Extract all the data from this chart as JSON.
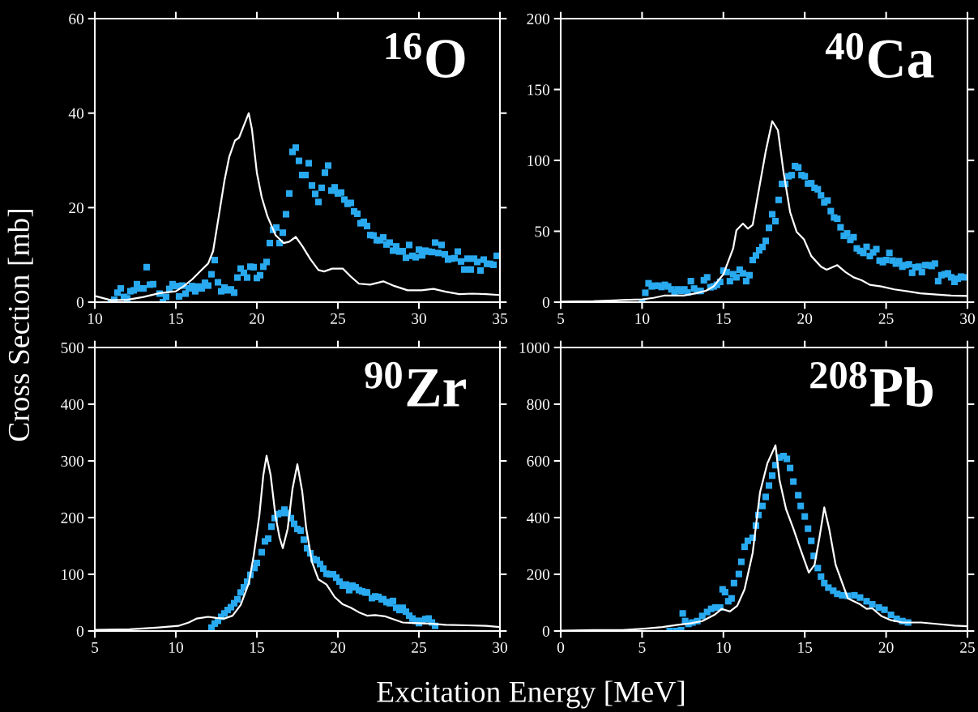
{
  "chart_data": [
    {
      "type": "scatter",
      "annotations": [
        "$^{16}$O"
      ],
      "ylabel": "Cross Section [mb]",
      "xlim": [
        10,
        35
      ],
      "xticks": [
        10,
        15,
        20,
        25,
        30,
        35
      ],
      "ylim": [
        0,
        60
      ],
      "yticks": [
        0,
        20,
        40,
        60
      ],
      "grid": false,
      "series": [
        {
          "type": "scatter",
          "marker": "square",
          "color": "#29aaf0",
          "x": [
            11.0,
            11.2,
            11.4,
            11.6,
            11.8,
            12.0,
            12.2,
            12.4,
            12.6,
            12.8,
            13.0,
            13.2,
            13.4,
            13.6,
            14.0,
            14.2,
            14.4,
            14.6,
            14.8,
            15.0,
            15.2,
            15.4,
            15.6,
            15.8,
            16.0,
            16.2,
            16.4,
            16.6,
            16.8,
            17.0,
            17.2,
            17.4,
            17.6,
            17.8,
            18.0,
            18.2,
            18.4,
            18.6,
            18.8,
            19.0,
            19.2,
            19.4,
            19.6,
            19.8,
            20.0,
            20.2,
            20.4,
            20.6,
            20.8,
            21.0,
            21.2,
            21.4,
            21.6,
            21.8,
            22.0,
            22.2,
            22.4,
            22.6,
            22.8,
            23.0,
            23.2,
            23.4,
            23.6,
            23.8,
            24.0,
            24.2,
            24.4,
            24.6,
            24.8,
            25.0,
            25.2,
            25.4,
            25.6,
            25.8,
            26.0,
            26.2,
            26.4,
            26.6,
            26.8,
            27.0,
            27.2,
            27.4,
            27.6,
            27.8,
            28.0,
            28.2,
            28.4,
            28.6,
            28.8,
            29.0,
            29.2,
            29.4,
            29.6,
            29.8,
            30.0,
            30.2,
            30.4,
            30.6,
            30.8,
            31.0,
            31.2,
            31.4,
            31.6,
            31.8,
            32.0,
            32.2,
            32.4,
            32.6,
            32.8,
            33.0,
            33.2,
            33.4,
            33.6,
            33.8,
            34.0,
            34.2,
            34.4,
            34.6,
            34.8
          ],
          "values": [
            0,
            0.5,
            2,
            2.9,
            1.1,
            0.8,
            2.3,
            2.5,
            3.8,
            2.9,
            2.9,
            7.4,
            3.7,
            3.8,
            1.8,
            0,
            1.1,
            2.8,
            3.8,
            3.4,
            1.2,
            3.5,
            1.8,
            2.9,
            3.4,
            2.3,
            3.3,
            2.9,
            4.1,
            3.5,
            5.9,
            8.9,
            4.2,
            2.3,
            3.1,
            2.5,
            2.7,
            2.0,
            5.2,
            7.1,
            6.2,
            5.2,
            7.5,
            7.4,
            5.1,
            5.7,
            7.5,
            8.5,
            12.5,
            15.3,
            15.8,
            12.5,
            14.7,
            18.6,
            23.0,
            31.8,
            32.7,
            29.9,
            26.9,
            26.9,
            29.4,
            24.7,
            22.9,
            21.2,
            24.2,
            27.4,
            28.9,
            23.6,
            24.3,
            23.0,
            23.2,
            21.7,
            20.8,
            21.0,
            19.2,
            18.7,
            16.7,
            17.0,
            16.1,
            14.2,
            14.1,
            13.1,
            13.1,
            13.7,
            12.2,
            12.6,
            10.9,
            11.8,
            10.7,
            10.8,
            9.4,
            12.1,
            9.8,
            9.5,
            11.1,
            9.9,
            10.9,
            10.7,
            10.6,
            12.6,
            10.4,
            12.1,
            10.1,
            9.0,
            9.2,
            9.3,
            10.7,
            8.6,
            6.9,
            9.2,
            6.9,
            9.2,
            8.5,
            6.7,
            9.0,
            8.1,
            8.1,
            7.9,
            9.8
          ]
        },
        {
          "type": "line",
          "color": "#ffffff",
          "x": [
            10,
            11,
            12,
            13,
            14,
            15,
            15.5,
            16,
            16.5,
            17,
            17.3,
            17.65,
            18,
            18.3,
            18.65,
            18.9,
            19.2,
            19.5,
            19.7,
            20,
            20.3,
            20.65,
            21.15,
            21.65,
            22,
            22.4,
            22.8,
            23.3,
            23.8,
            24.15,
            24.65,
            25.3,
            25.8,
            26.3,
            27,
            27.8,
            28.5,
            29.3,
            30.15,
            30.9,
            31.65,
            32.5,
            33.3,
            34.15,
            35
          ],
          "values": [
            1.3,
            0.4,
            0.5,
            1.1,
            1.9,
            2.3,
            3.4,
            4.8,
            6.5,
            8.2,
            10.8,
            18.2,
            25.7,
            30.8,
            34.2,
            34.8,
            37.4,
            40,
            36.5,
            27.4,
            22.2,
            18.2,
            14.2,
            12.5,
            12.8,
            13.8,
            11.9,
            9.1,
            6.8,
            6.5,
            7.1,
            7.1,
            5.4,
            3.9,
            3.7,
            4.4,
            3.4,
            2.5,
            2.5,
            2.8,
            2.2,
            1.7,
            1.8,
            1.7,
            1.5
          ]
        }
      ]
    },
    {
      "type": "scatter",
      "annotations": [
        "$^{40}$Ca"
      ],
      "xlim": [
        5,
        30
      ],
      "xticks": [
        5,
        10,
        15,
        20,
        25,
        30
      ],
      "ylim": [
        0,
        200
      ],
      "yticks": [
        0,
        50,
        100,
        150,
        200
      ],
      "grid": false,
      "series": [
        {
          "type": "scatter",
          "marker": "square",
          "color": "#29aaf0",
          "x": [
            10.0,
            10.2,
            10.4,
            10.6,
            10.8,
            11.0,
            11.2,
            11.4,
            11.6,
            11.8,
            12.0,
            12.2,
            12.4,
            12.6,
            12.8,
            13.0,
            13.2,
            13.4,
            13.6,
            13.8,
            14.0,
            14.2,
            14.4,
            14.6,
            14.8,
            15.0,
            15.2,
            15.4,
            15.6,
            15.8,
            16.0,
            16.2,
            16.4,
            16.6,
            16.8,
            17.0,
            17.2,
            17.4,
            17.6,
            17.8,
            18.0,
            18.2,
            18.4,
            18.6,
            18.8,
            19.0,
            19.2,
            19.4,
            19.6,
            19.8,
            20.0,
            20.2,
            20.4,
            20.6,
            20.8,
            21.0,
            21.2,
            21.4,
            21.6,
            21.8,
            22.0,
            22.2,
            22.4,
            22.6,
            22.8,
            23.0,
            23.2,
            23.4,
            23.6,
            23.8,
            24.0,
            24.2,
            24.4,
            24.6,
            24.8,
            25.0,
            25.2,
            25.4,
            25.6,
            25.8,
            26.0,
            26.2,
            26.4,
            26.6,
            26.8,
            27.0,
            27.2,
            27.4,
            27.6,
            27.8,
            28.0,
            28.2,
            28.4,
            28.6,
            28.8,
            29.0,
            29.2,
            29.4,
            29.6,
            29.8
          ],
          "values": [
            0,
            6.6,
            13.3,
            11.1,
            11.6,
            11.6,
            10.7,
            12.2,
            11.1,
            9.0,
            6.8,
            9.0,
            7.9,
            9.0,
            6.8,
            14.8,
            9.6,
            7.9,
            7.9,
            15.4,
            17.5,
            10.5,
            11.1,
            12.2,
            14.3,
            22.2,
            21.2,
            14.8,
            19.7,
            17.5,
            22.9,
            20.3,
            14.8,
            19.0,
            29.7,
            32.9,
            36.6,
            38.9,
            43.2,
            52.4,
            62.0,
            57.1,
            72.1,
            83.4,
            83.4,
            88.8,
            89.6,
            96.0,
            95.0,
            89.6,
            88.8,
            83.6,
            83.9,
            80.6,
            79.6,
            75.3,
            70.4,
            71.7,
            64.2,
            59.7,
            58.8,
            52.8,
            46.8,
            48.5,
            43.9,
            45.8,
            37.9,
            36.1,
            34.7,
            39.0,
            32.5,
            35.1,
            37.4,
            29.3,
            28.2,
            29.7,
            34.7,
            29.3,
            27.2,
            28.9,
            25.0,
            26.1,
            26.7,
            20.7,
            24.6,
            25.0,
            21.2,
            26.1,
            26.1,
            25.5,
            27.2,
            14.8,
            19.0,
            19.7,
            20.3,
            17.5,
            14.3,
            16.5,
            18.0,
            17.5
          ]
        },
        {
          "type": "line",
          "color": "#ffffff",
          "x": [
            5,
            7,
            8.8,
            10,
            10.7,
            11.4,
            12.6,
            13.3,
            13.9,
            14.4,
            15.0,
            15.6,
            15.8,
            16.2,
            16.5,
            16.8,
            17.1,
            17.6,
            18.0,
            18.35,
            18.7,
            19.1,
            19.5,
            19.95,
            20.4,
            21.0,
            21.35,
            22.0,
            22.5,
            23.0,
            23.5,
            24.0,
            24.7,
            25.5,
            26.4,
            27.1,
            28.1,
            29.0,
            30
          ],
          "values": [
            0.4,
            0.6,
            1.5,
            1.9,
            3.0,
            4.7,
            4.7,
            6.2,
            7.9,
            11.1,
            19.7,
            37.9,
            50.7,
            55.4,
            51.8,
            54.5,
            74.2,
            106.3,
            127.7,
            121.3,
            91.4,
            63.5,
            49.6,
            44.3,
            32.5,
            25.0,
            22.9,
            26.1,
            21.2,
            17.5,
            15.4,
            12.2,
            11.1,
            9.0,
            7.5,
            6.2,
            5.3,
            4.7,
            4.3
          ]
        }
      ]
    },
    {
      "type": "scatter",
      "annotations": [
        "$^{90}$Zr"
      ],
      "xlabel": "Excitation Energy [MeV]",
      "xlim": [
        5,
        30
      ],
      "xticks": [
        5,
        10,
        15,
        20,
        25,
        30
      ],
      "ylim": [
        0,
        500
      ],
      "yticks": [
        0,
        100,
        200,
        300,
        400,
        500
      ],
      "grid": false,
      "series": [
        {
          "type": "scatter",
          "marker": "square",
          "color": "#29aaf0",
          "x": [
            12.2,
            12.4,
            12.6,
            12.8,
            13.0,
            13.2,
            13.4,
            13.6,
            13.8,
            14.0,
            14.2,
            14.4,
            14.6,
            14.85,
            15.0,
            15.3,
            15.5,
            15.7,
            15.9,
            16.1,
            16.3,
            16.5,
            16.7,
            16.9,
            17.1,
            17.3,
            17.5,
            17.7,
            17.9,
            18.1,
            18.3,
            18.5,
            18.7,
            18.9,
            19.1,
            19.3,
            19.5,
            19.7,
            19.9,
            20.1,
            20.3,
            20.5,
            20.7,
            20.9,
            21.1,
            21.3,
            21.5,
            21.7,
            21.8,
            22.1,
            22.3,
            22.5,
            22.7,
            22.8,
            23.0,
            23.2,
            23.4,
            23.6,
            23.8,
            24.0,
            24.2,
            24.4,
            24.6,
            24.8,
            25.0,
            25.2,
            25.4,
            25.6,
            25.8,
            26.0
          ],
          "values": [
            6,
            13,
            18,
            25,
            31,
            37,
            42,
            49,
            56,
            68,
            77,
            87,
            99,
            111,
            120,
            139,
            158,
            163,
            184,
            199,
            206,
            208,
            214,
            208,
            199,
            189,
            180,
            177,
            161,
            146,
            137,
            127,
            125,
            118,
            110,
            101,
            100,
            100,
            94,
            87,
            80,
            82,
            72,
            80,
            77,
            72,
            70,
            68,
            68,
            58,
            61,
            60,
            56,
            56,
            51,
            49,
            53,
            41,
            37,
            41,
            34,
            27,
            22,
            18,
            14,
            18,
            21,
            22,
            15,
            9
          ]
        },
        {
          "type": "line",
          "color": "#ffffff",
          "x": [
            5,
            7.15,
            8.8,
            10.15,
            10.8,
            11.3,
            12.0,
            12.5,
            13.0,
            13.5,
            14.0,
            14.5,
            14.8,
            15.15,
            15.4,
            15.6,
            15.85,
            16.15,
            16.4,
            16.6,
            16.9,
            17.2,
            17.5,
            17.8,
            18.05,
            18.4,
            18.8,
            19.3,
            19.8,
            20.3,
            20.8,
            21.3,
            21.8,
            22.3,
            22.9,
            23.5,
            24.0,
            24.65,
            25.65,
            26.65,
            28,
            29.15,
            30
          ],
          "values": [
            2,
            3,
            6,
            9,
            15,
            22,
            25,
            23,
            22,
            27,
            46,
            84,
            132,
            203,
            275,
            309,
            275,
            203,
            165,
            146,
            180,
            251,
            294,
            246,
            180,
            122,
            91,
            82,
            60,
            47,
            41,
            33,
            27,
            28,
            26,
            20,
            15,
            14,
            13,
            11,
            10,
            9,
            7
          ]
        }
      ]
    },
    {
      "type": "scatter",
      "annotations": [
        "$^{208}$Pb"
      ],
      "xlim": [
        0,
        25
      ],
      "xticks": [
        0,
        5,
        10,
        15,
        20,
        25
      ],
      "ylim": [
        0,
        1000
      ],
      "yticks": [
        0,
        200,
        400,
        600,
        800,
        1000
      ],
      "grid": false,
      "series": [
        {
          "type": "scatter",
          "marker": "square",
          "color": "#29aaf0",
          "x": [
            6.7,
            7.1,
            7.4,
            7.5,
            7.65,
            7.85,
            8.1,
            8.4,
            8.7,
            9.0,
            9.25,
            9.5,
            9.8,
            9.95,
            10.1,
            10.3,
            10.5,
            10.65,
            10.95,
            11.1,
            11.3,
            11.5,
            11.8,
            12.0,
            12.15,
            12.4,
            12.6,
            12.8,
            13.0,
            13.2,
            13.45,
            13.7,
            13.9,
            14.1,
            14.3,
            14.6,
            14.75,
            15.0,
            15.2,
            15.4,
            15.55,
            15.8,
            16.0,
            16.2,
            16.45,
            16.75,
            17.0,
            17.3,
            17.65,
            18.05,
            18.4,
            18.8,
            19.15,
            19.55,
            19.9,
            20.3,
            20.65,
            21.0,
            21.35
          ],
          "values": [
            0,
            0,
            3,
            62,
            35,
            25,
            30,
            35,
            53,
            67,
            78,
            83,
            83,
            147,
            137,
            105,
            115,
            169,
            201,
            244,
            297,
            318,
            329,
            372,
            409,
            441,
            473,
            513,
            548,
            585,
            612,
            617,
            607,
            575,
            527,
            479,
            441,
            404,
            361,
            318,
            265,
            222,
            192,
            169,
            153,
            142,
            131,
            126,
            124,
            126,
            118,
            105,
            94,
            83,
            75,
            57,
            43,
            35,
            30
          ]
        },
        {
          "type": "line",
          "color": "#ffffff",
          "x": [
            0,
            2,
            3.8,
            5.3,
            6.25,
            7.2,
            7.95,
            8.7,
            9.45,
            9.9,
            10.4,
            10.85,
            11.3,
            11.8,
            12.25,
            12.7,
            13.2,
            13.45,
            13.85,
            14.3,
            14.75,
            15.25,
            15.6,
            15.9,
            16.2,
            16.5,
            16.9,
            17.65,
            18.4,
            18.8,
            19.15,
            19.7,
            20.3,
            21.0,
            22.15,
            23.1,
            24.2,
            25
          ],
          "values": [
            1,
            3,
            3,
            9,
            14,
            22,
            27,
            35,
            57,
            78,
            69,
            89,
            147,
            276,
            489,
            591,
            655,
            532,
            430,
            361,
            286,
            206,
            233,
            329,
            436,
            361,
            233,
            115,
            94,
            78,
            80,
            53,
            38,
            30,
            30,
            25,
            19,
            17
          ]
        }
      ]
    }
  ]
}
